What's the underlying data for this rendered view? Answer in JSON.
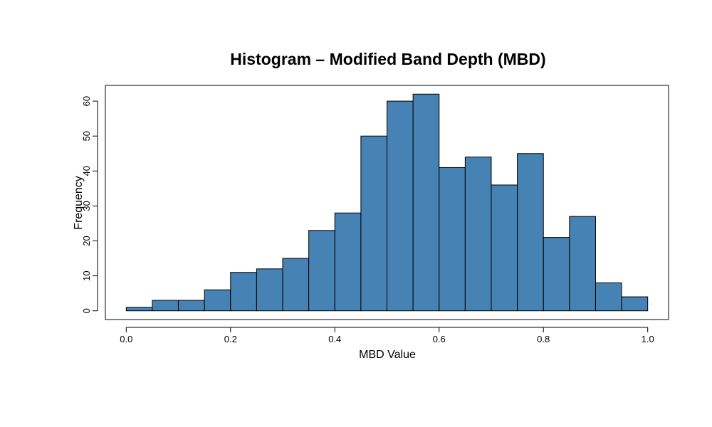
{
  "chart_data": {
    "type": "bar",
    "title": "Histogram – Modified Band Depth (MBD)",
    "xlabel": "MBD Value",
    "ylabel": "Frequency",
    "bin_edges": [
      0.0,
      0.05,
      0.1,
      0.15,
      0.2,
      0.25,
      0.3,
      0.35,
      0.4,
      0.45,
      0.5,
      0.55,
      0.6,
      0.65,
      0.7,
      0.75,
      0.8,
      0.85,
      0.9,
      0.95,
      1.0
    ],
    "values": [
      1,
      3,
      3,
      6,
      11,
      12,
      15,
      23,
      28,
      50,
      60,
      62,
      41,
      44,
      36,
      45,
      21,
      27,
      8,
      4
    ],
    "xlim": [
      -0.04,
      1.04
    ],
    "ylim": [
      -2.5,
      64.5
    ],
    "x_ticks": [
      0.0,
      0.2,
      0.4,
      0.6,
      0.8,
      1.0
    ],
    "x_tick_labels": [
      "0.0",
      "0.2",
      "0.4",
      "0.6",
      "0.8",
      "1.0"
    ],
    "y_ticks": [
      0,
      10,
      20,
      30,
      40,
      50,
      60
    ],
    "y_tick_labels": [
      "0",
      "10",
      "20",
      "30",
      "40",
      "50",
      "60"
    ],
    "bar_color": "#4682b4",
    "grid": false,
    "legend": "none"
  }
}
